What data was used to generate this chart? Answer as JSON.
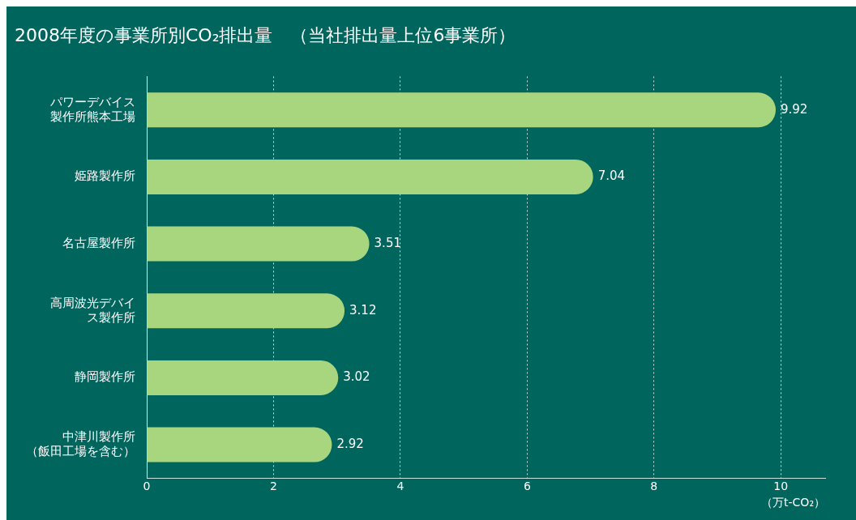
{
  "chart_data": {
    "type": "bar",
    "orientation": "horizontal",
    "title": "2008年度の事業所別CO₂排出量　（当社排出量上位6事業所）",
    "categories": [
      "パワーデバイス製作所熊本工場",
      "姫路製作所",
      "名古屋製作所",
      "高周波光デバイス製作所",
      "静岡製作所",
      "中津川製作所（飯田工場を含む）"
    ],
    "values": [
      9.92,
      7.04,
      3.51,
      3.12,
      3.02,
      2.92
    ],
    "color": "#a8d67f",
    "xlim": [
      0,
      10.7
    ],
    "xticks": [
      0,
      2,
      4,
      6,
      8,
      10
    ],
    "xlabel": "（万t-CO₂）",
    "grid": "x",
    "data_labels": true,
    "legend": false
  }
}
